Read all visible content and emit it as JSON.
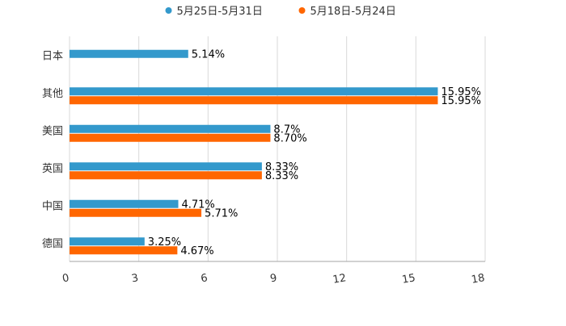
{
  "chart_data": {
    "type": "bar",
    "orientation": "horizontal",
    "title": "",
    "xlabel": "",
    "ylabel": "",
    "xlim": [
      0,
      18
    ],
    "x_ticks": [
      0,
      3,
      6,
      9,
      12,
      15,
      18
    ],
    "grid": true,
    "legend_position": "top-center",
    "categories": [
      "日本",
      "其他",
      "美国",
      "英国",
      "中国",
      "德国"
    ],
    "series": [
      {
        "name": "5月25日-5月31日",
        "color": "#3399cc",
        "values": [
          5.14,
          15.95,
          8.7,
          8.33,
          4.71,
          3.25
        ],
        "labels": [
          "5.14%",
          "15.95%",
          "8.7%",
          "8.33%",
          "4.71%",
          "3.25%"
        ]
      },
      {
        "name": "5月18日-5月24日",
        "color": "#ff6600",
        "values": [
          null,
          15.95,
          8.7,
          8.33,
          5.71,
          4.67
        ],
        "labels": [
          null,
          "15.95%",
          "8.70%",
          "8.33%",
          "5.71%",
          "4.67%"
        ]
      }
    ]
  }
}
